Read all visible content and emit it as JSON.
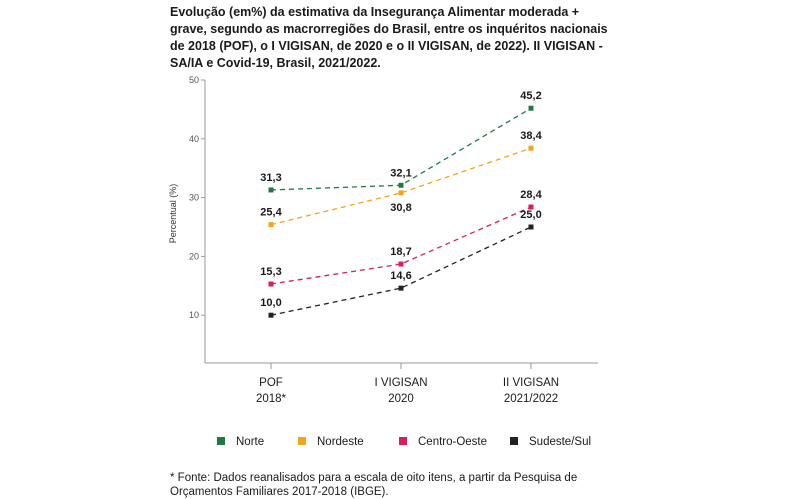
{
  "title": "Evolução (em%) da estimativa da Insegurança Alimentar moderada + grave, segundo as macrorregiões do Brasil, entre os inquéritos nacionais de 2018 (POF), o I VIGISAN, de 2020 e o II VIGISAN, de 2022). II VIGISAN - SA/IA e Covid-19, Brasil, 2021/2022.",
  "footnote": "* Fonte: Dados reanalisados para a escala de oito itens, a partir da Pesquisa de Orçamentos Familiares 2017-2018 (IBGE).",
  "chart_data": {
    "type": "line",
    "ylabel": "Percentual (%)",
    "ylim": [
      0,
      50
    ],
    "yticks": [
      10,
      20,
      30,
      40,
      50
    ],
    "categories": [
      {
        "line1": "POF",
        "line2": "2018*"
      },
      {
        "line1": "I VIGISAN",
        "line2": "2020"
      },
      {
        "line1": "II VIGISAN",
        "line2": "2021/2022"
      }
    ],
    "legend_position": "bottom",
    "grid": false,
    "series": [
      {
        "name": "Norte",
        "color": "#1e7a45",
        "values": [
          31.3,
          32.1,
          45.2
        ],
        "labels": [
          "31,3",
          "32,1",
          "45,2"
        ],
        "label_pos": [
          "above",
          "above",
          "above"
        ]
      },
      {
        "name": "Nordeste",
        "color": "#f2a51a",
        "values": [
          25.4,
          30.8,
          38.4
        ],
        "labels": [
          "25,4",
          "30,8",
          "38,4"
        ],
        "label_pos": [
          "above",
          "below",
          "above"
        ]
      },
      {
        "name": "Centro-Oeste",
        "color": "#d81e5b",
        "values": [
          15.3,
          18.7,
          28.4
        ],
        "labels": [
          "15,3",
          "18,7",
          "28,4"
        ],
        "label_pos": [
          "above",
          "above",
          "above"
        ]
      },
      {
        "name": "Sudeste/Sul",
        "color": "#222222",
        "values": [
          10.0,
          14.6,
          25.0
        ],
        "labels": [
          "10,0",
          "14,6",
          "25,0"
        ],
        "label_pos": [
          "above",
          "above",
          "above"
        ]
      }
    ]
  }
}
